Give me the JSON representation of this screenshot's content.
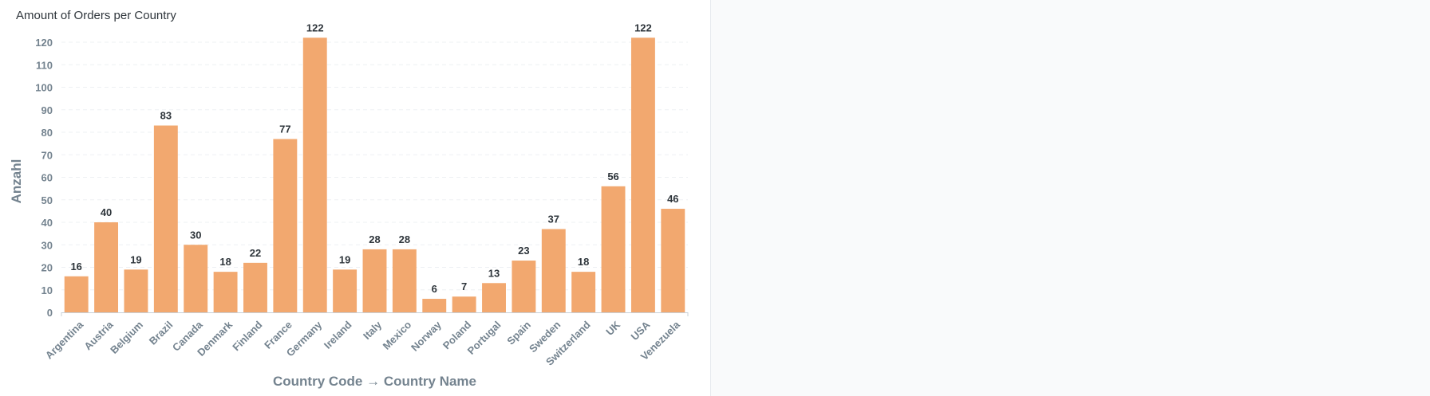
{
  "card": {
    "title": "Amount of Orders per Country"
  },
  "chart_data": {
    "type": "bar",
    "title": "Amount of Orders per Country",
    "xlabel": "Country Code → Country Name",
    "ylabel": "Anzahl",
    "ylim": [
      0,
      120
    ],
    "yticks": [
      0,
      10,
      20,
      30,
      40,
      50,
      60,
      70,
      80,
      90,
      100,
      110,
      120
    ],
    "grid": true,
    "bar_color": "#f2a86f",
    "categories": [
      "Argentina",
      "Austria",
      "Belgium",
      "Brazil",
      "Canada",
      "Denmark",
      "Finland",
      "France",
      "Germany",
      "Ireland",
      "Italy",
      "Mexico",
      "Norway",
      "Poland",
      "Portugal",
      "Spain",
      "Sweden",
      "Switzerland",
      "UK",
      "USA",
      "Venezuela"
    ],
    "values": [
      16,
      40,
      19,
      83,
      30,
      18,
      22,
      77,
      122,
      19,
      28,
      28,
      6,
      7,
      13,
      23,
      37,
      18,
      56,
      122,
      46
    ]
  }
}
